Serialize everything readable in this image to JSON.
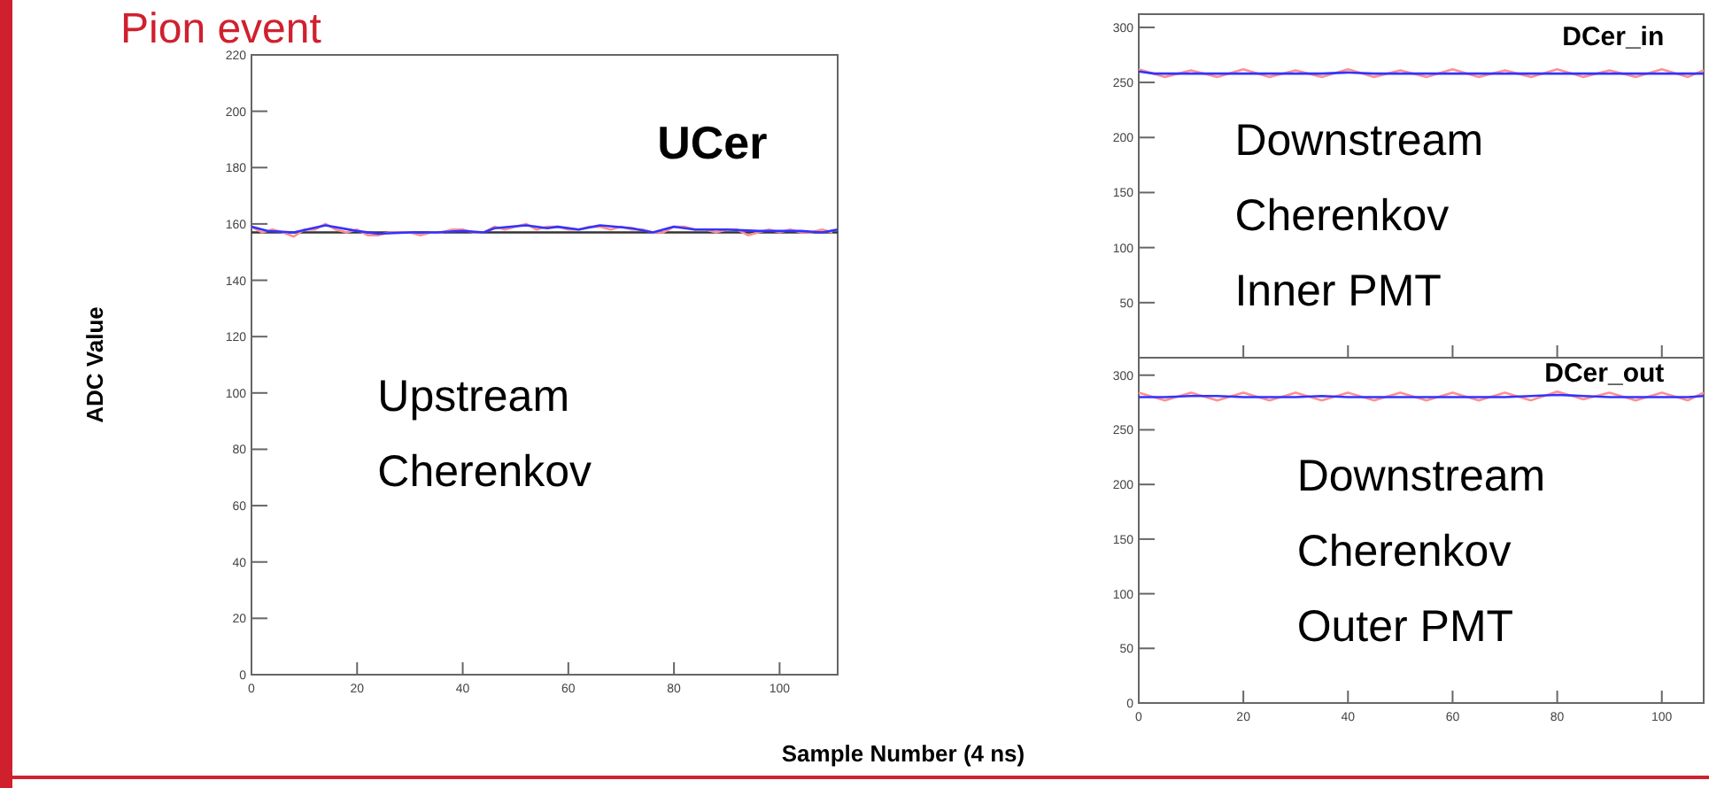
{
  "chart_data": [
    {
      "type": "line",
      "title": "UCer",
      "xlabel": "Sample Number (4 ns)",
      "ylabel": "ADC Value",
      "annotations": [
        "Pion event",
        "Upstream\nCherenkov"
      ],
      "xlim": [
        0,
        111
      ],
      "xticks": [
        0,
        20,
        40,
        60,
        80,
        100
      ],
      "ylim": [
        0,
        220
      ],
      "yticks": [
        0,
        20,
        40,
        60,
        80,
        100,
        120,
        140,
        160,
        180,
        200,
        220
      ],
      "line_style": "solid",
      "ref_lines": [
        {
          "axis": "y",
          "value": 157,
          "color": "#333333"
        }
      ],
      "series": [
        {
          "color": "#ff9090",
          "x": [
            0,
            2,
            4,
            6,
            8,
            10,
            12,
            14,
            16,
            18,
            20,
            22,
            24,
            26,
            28,
            30,
            32,
            34,
            36,
            38,
            40,
            42,
            44,
            46,
            48,
            50,
            52,
            54,
            56,
            58,
            60,
            62,
            64,
            66,
            68,
            70,
            72,
            74,
            76,
            78,
            80,
            82,
            84,
            86,
            88,
            90,
            92,
            94,
            96,
            98,
            100,
            102,
            104,
            106,
            108,
            110
          ],
          "values": [
            159,
            157,
            158,
            157,
            155.5,
            158,
            158,
            160,
            158,
            157,
            158,
            156,
            156,
            157,
            157,
            157,
            156,
            157,
            157,
            158,
            158,
            157,
            157,
            159,
            158,
            159,
            160,
            158,
            159,
            159,
            158,
            158,
            159,
            159,
            158,
            159,
            158,
            158,
            157,
            157,
            159,
            159,
            158,
            158,
            157,
            158,
            158,
            156,
            157,
            158,
            157,
            158,
            157,
            157,
            158,
            157
          ]
        },
        {
          "color": "#3333ff",
          "x": [
            0,
            3,
            8,
            14,
            20,
            24,
            30,
            35,
            40,
            44,
            46,
            52,
            56,
            58,
            62,
            66,
            72,
            76,
            80,
            84,
            90,
            96,
            100,
            104,
            108,
            111
          ],
          "values": [
            159,
            157.5,
            157,
            159.5,
            157.5,
            156.5,
            157,
            157,
            157.5,
            157,
            158.5,
            159.5,
            158.5,
            159,
            158,
            159.5,
            158.5,
            157,
            159,
            158,
            158,
            157.5,
            157.5,
            157.5,
            157,
            158
          ]
        }
      ]
    },
    {
      "type": "line",
      "title": "DCer_in",
      "annotations": [
        "Downstream\nCherenkov\nInner PMT"
      ],
      "xlim": [
        0,
        108
      ],
      "xticks": [
        0,
        20,
        40,
        60,
        80,
        100
      ],
      "ylim": [
        0,
        312
      ],
      "yticks": [
        {
          "value": 0,
          "label": null
        },
        50,
        100,
        150,
        200,
        250,
        300
      ],
      "tick_labels": "y",
      "line_style": "solid",
      "series": [
        {
          "color": "#ff9090",
          "x": [
            0,
            5,
            10,
            15,
            20,
            25,
            30,
            35,
            40,
            45,
            50,
            55,
            60,
            65,
            70,
            75,
            80,
            85,
            90,
            95,
            100,
            105,
            108
          ],
          "values": [
            262,
            255,
            261,
            255,
            262,
            255,
            261,
            255,
            262,
            255,
            261,
            255,
            262,
            255,
            261,
            255,
            262,
            255,
            261,
            255,
            262,
            255,
            261
          ]
        },
        {
          "color": "#3333ff",
          "x": [
            0,
            3,
            6,
            10,
            15,
            20,
            25,
            30,
            35,
            40,
            45,
            50,
            55,
            60,
            65,
            70,
            75,
            80,
            85,
            90,
            95,
            100,
            105,
            108
          ],
          "values": [
            260,
            258,
            258,
            258,
            258,
            258,
            258,
            258,
            258,
            259,
            258,
            258,
            258,
            258,
            258,
            258,
            258,
            258,
            258,
            258,
            258,
            258,
            258,
            258
          ]
        }
      ]
    },
    {
      "type": "line",
      "title": "DCer_out",
      "annotations": [
        "Downstream\nCherenkov\nOuter PMT"
      ],
      "xlim": [
        0,
        108
      ],
      "xticks": [
        0,
        20,
        40,
        60,
        80,
        100
      ],
      "ylim": [
        0,
        316
      ],
      "yticks": [
        0,
        50,
        100,
        150,
        200,
        250,
        300
      ],
      "line_style": "solid",
      "series": [
        {
          "color": "#ff9090",
          "x": [
            0,
            5,
            10,
            15,
            20,
            25,
            30,
            35,
            40,
            45,
            50,
            55,
            60,
            65,
            70,
            75,
            80,
            85,
            90,
            95,
            100,
            105,
            108
          ],
          "values": [
            284,
            277,
            284,
            277,
            284,
            277,
            284,
            277,
            284,
            277,
            284,
            277,
            284,
            277,
            284,
            277,
            285,
            278,
            284,
            277,
            284,
            277,
            284
          ]
        },
        {
          "color": "#3333ff",
          "x": [
            0,
            5,
            10,
            15,
            20,
            25,
            30,
            35,
            40,
            45,
            50,
            55,
            60,
            65,
            70,
            75,
            80,
            85,
            90,
            95,
            100,
            105,
            108
          ],
          "values": [
            280,
            280,
            281,
            281,
            280,
            280,
            280,
            281,
            280,
            280,
            280,
            280,
            280,
            280,
            280,
            281,
            282,
            281,
            280,
            280,
            280,
            280,
            281
          ]
        }
      ]
    }
  ]
}
